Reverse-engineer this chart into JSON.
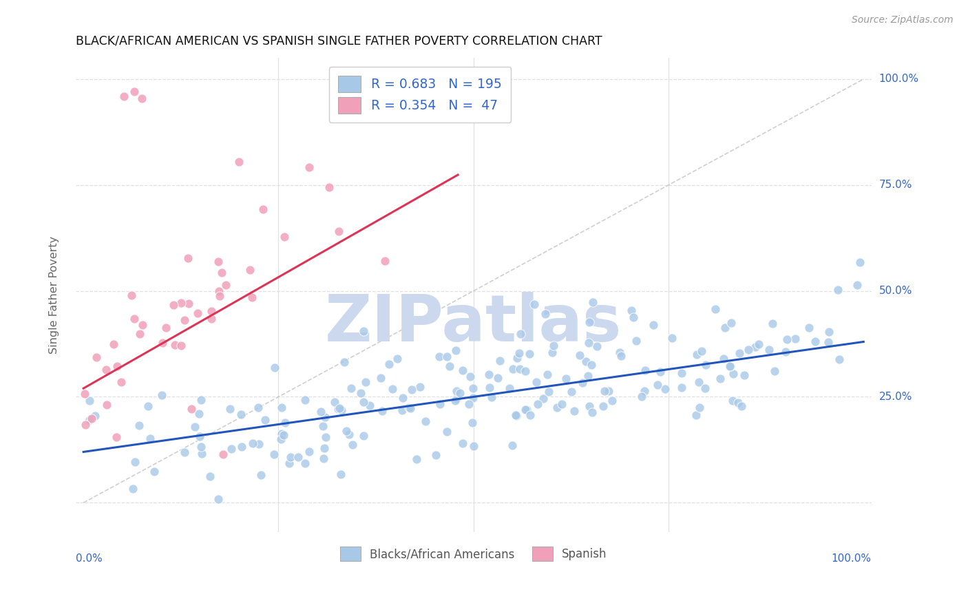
{
  "title": "BLACK/AFRICAN AMERICAN VS SPANISH SINGLE FATHER POVERTY CORRELATION CHART",
  "source": "Source: ZipAtlas.com",
  "ylabel": "Single Father Poverty",
  "xlim": [
    0,
    1
  ],
  "ylim": [
    -0.07,
    1.05
  ],
  "ytick_vals": [
    0.0,
    0.25,
    0.5,
    0.75,
    1.0
  ],
  "xtick_vals": [
    0.0,
    0.25,
    0.5,
    0.75,
    1.0
  ],
  "blue_R": 0.683,
  "blue_N": 195,
  "pink_R": 0.354,
  "pink_N": 47,
  "blue_color": "#a8c8e8",
  "pink_color": "#f0a0b8",
  "blue_line_color": "#2255bb",
  "pink_line_color": "#dd3355",
  "diagonal_color": "#bbbbbb",
  "watermark": "ZIPatlas",
  "watermark_color": "#ccd8ee",
  "legend_text_color": "#3366cc",
  "title_color": "#111111",
  "axis_label_color": "#3366cc",
  "background_color": "#ffffff",
  "grid_color": "#e0e0e0",
  "blue_scatter_seed": 42,
  "pink_scatter_seed": 77,
  "blue_line_intercept": 0.12,
  "blue_line_slope": 0.26,
  "pink_line_intercept": 0.27,
  "pink_line_slope": 1.05,
  "pink_line_xmax": 0.48
}
